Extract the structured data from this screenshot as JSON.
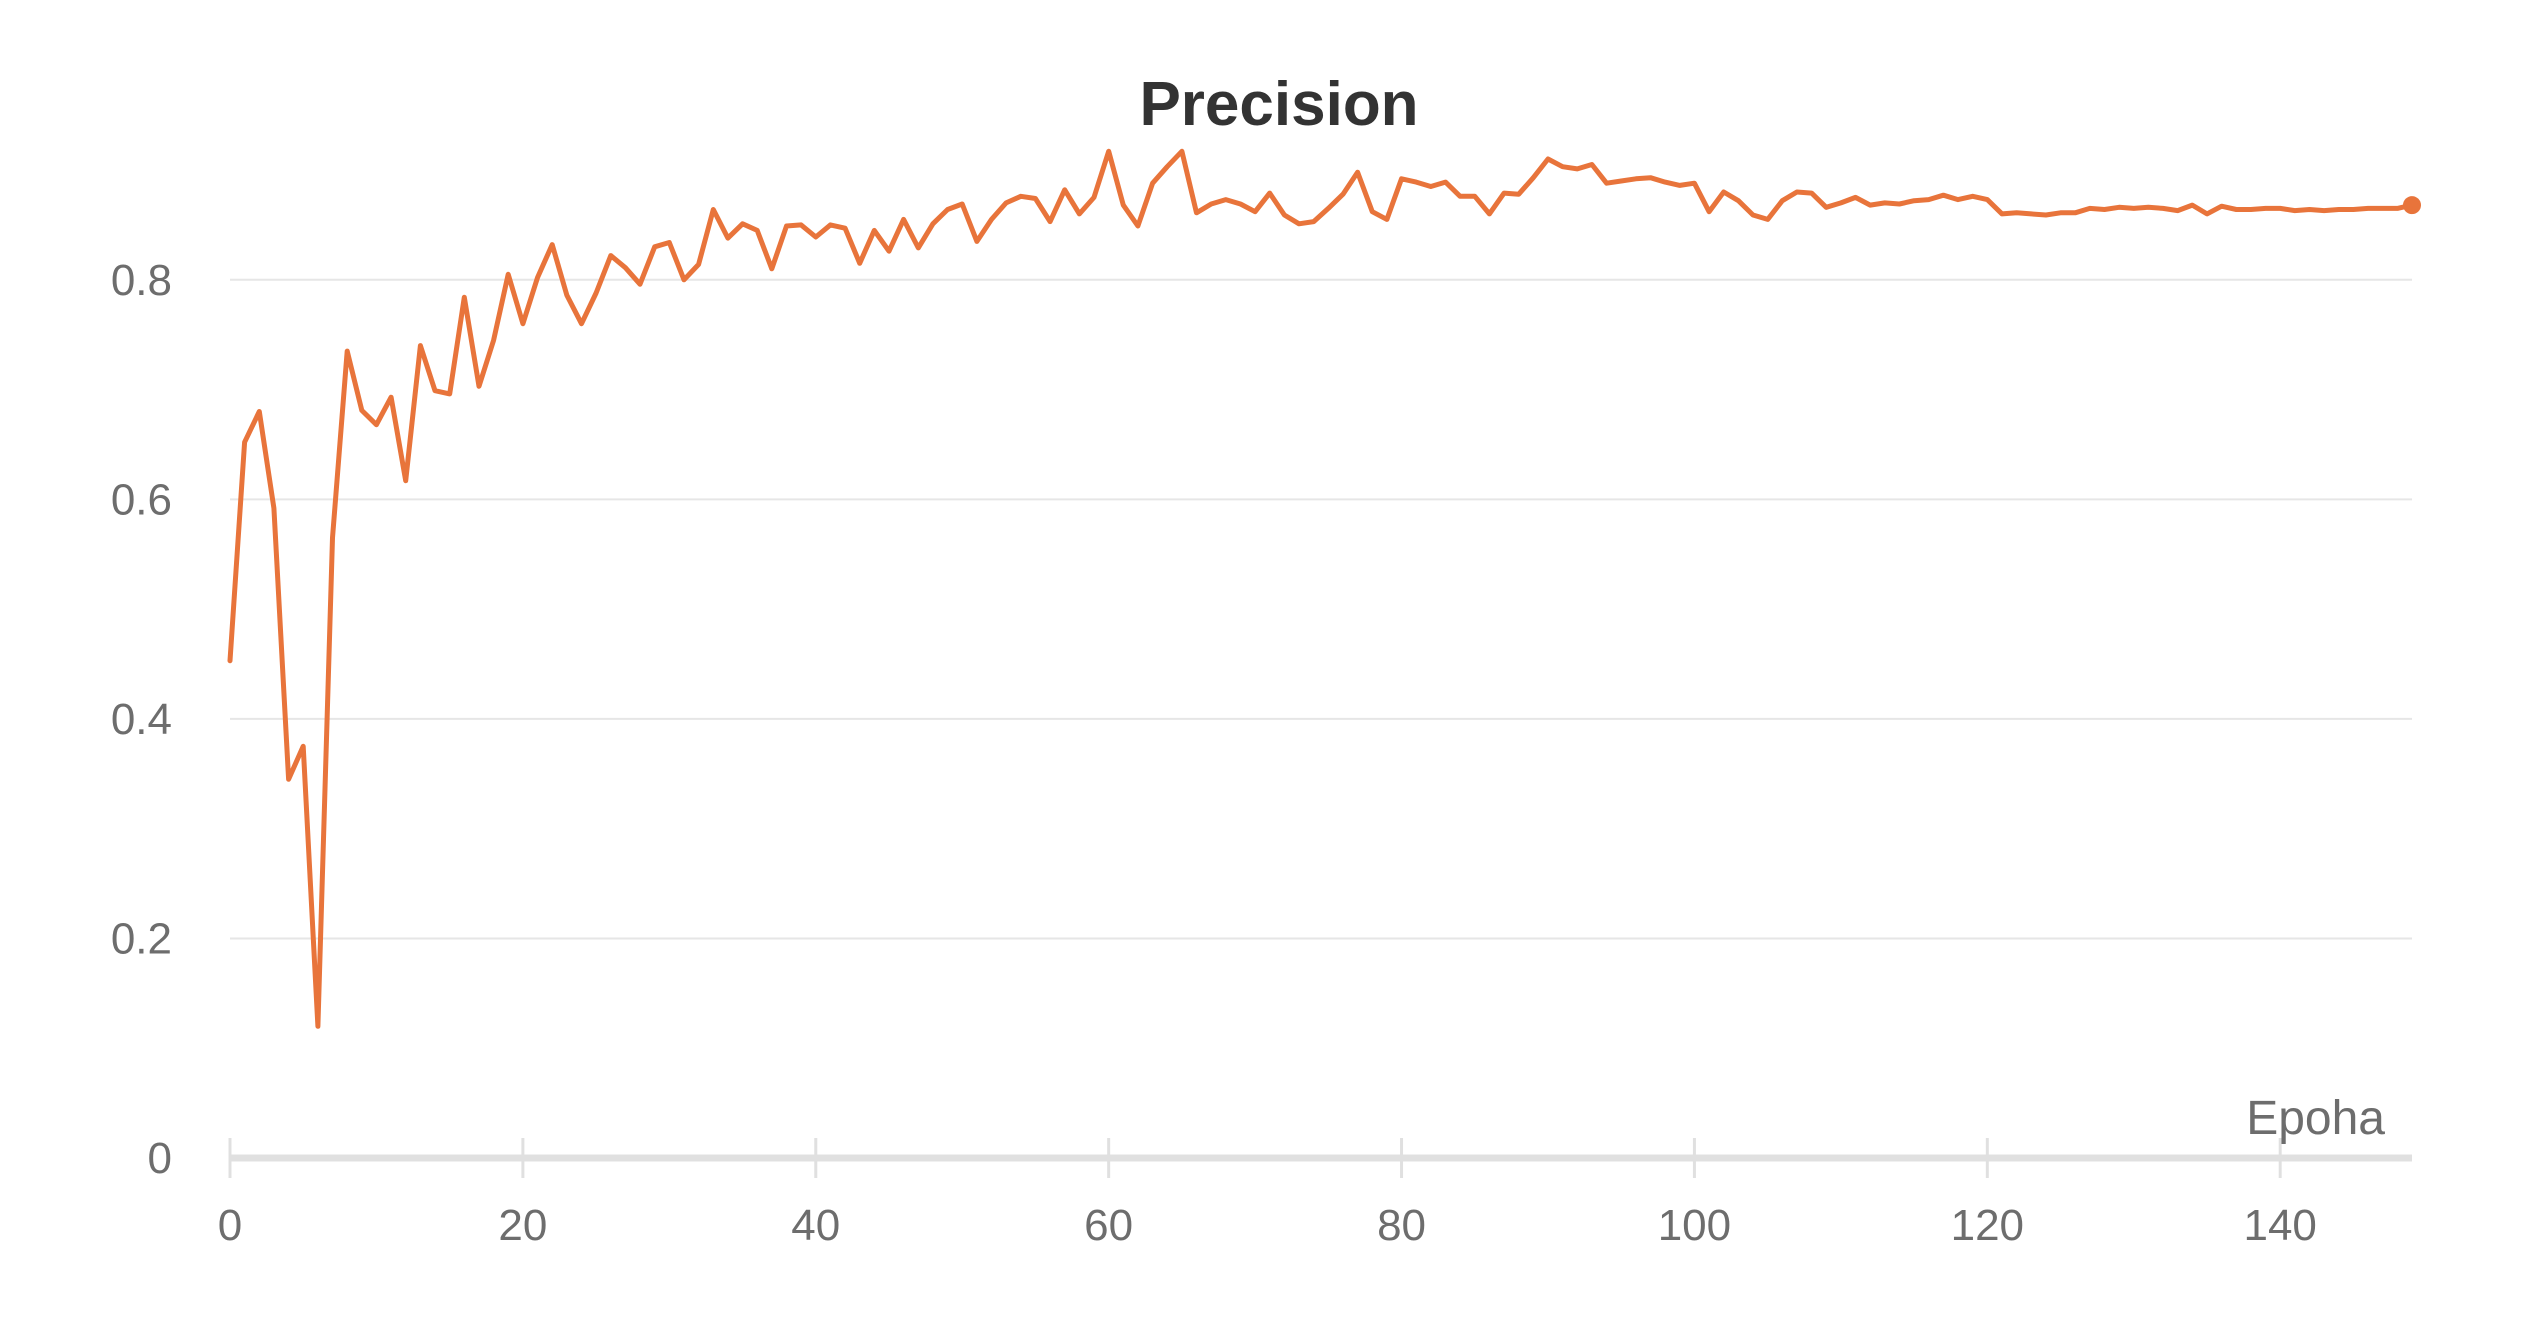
{
  "chart_data": {
    "type": "line",
    "title": "Precision",
    "xlabel": "Epoha",
    "ylabel": "",
    "xlim": [
      0,
      149
    ],
    "ylim": [
      0,
      0.9
    ],
    "grid": true,
    "xticks": [
      0,
      20,
      40,
      60,
      80,
      100,
      120,
      140
    ],
    "xtick_labels": [
      "0",
      "20",
      "40",
      "60",
      "80",
      "100",
      "120",
      "140"
    ],
    "yticks": [
      0,
      0.2,
      0.4,
      0.6,
      0.8
    ],
    "ytick_labels": [
      "0",
      "0.2",
      "0.4",
      "0.6",
      "0.8"
    ],
    "line_color": "#e8743b",
    "grid_color": "#e6e6e6",
    "axis_color": "#e0e0e0",
    "series": [
      {
        "end_marker": true,
        "x": [
          0,
          1,
          2,
          3,
          4,
          5,
          6,
          7,
          8,
          9,
          10,
          11,
          12,
          13,
          14,
          15,
          16,
          17,
          18,
          19,
          20,
          21,
          22,
          23,
          24,
          25,
          26,
          27,
          28,
          29,
          30,
          31,
          32,
          33,
          34,
          35,
          36,
          37,
          38,
          39,
          40,
          41,
          42,
          43,
          44,
          45,
          46,
          47,
          48,
          49,
          50,
          51,
          52,
          53,
          54,
          55,
          56,
          57,
          58,
          59,
          60,
          61,
          62,
          63,
          64,
          65,
          66,
          67,
          68,
          69,
          70,
          71,
          72,
          73,
          74,
          75,
          76,
          77,
          78,
          79,
          80,
          81,
          82,
          83,
          84,
          85,
          86,
          87,
          88,
          89,
          90,
          91,
          92,
          93,
          94,
          95,
          96,
          97,
          98,
          99,
          100,
          101,
          102,
          103,
          104,
          105,
          106,
          107,
          108,
          109,
          110,
          111,
          112,
          113,
          114,
          115,
          116,
          117,
          118,
          119,
          120,
          121,
          122,
          123,
          124,
          125,
          126,
          127,
          128,
          129,
          130,
          131,
          132,
          133,
          134,
          135,
          136,
          137,
          138,
          139,
          140,
          141,
          142,
          143,
          144,
          145,
          146,
          147,
          148,
          149
        ],
        "values": [
          0.453,
          0.652,
          0.68,
          0.592,
          0.345,
          0.375,
          0.12,
          0.565,
          0.735,
          0.681,
          0.668,
          0.693,
          0.617,
          0.74,
          0.699,
          0.696,
          0.784,
          0.703,
          0.745,
          0.805,
          0.76,
          0.802,
          0.832,
          0.786,
          0.76,
          0.788,
          0.822,
          0.811,
          0.796,
          0.83,
          0.834,
          0.8,
          0.814,
          0.864,
          0.838,
          0.851,
          0.845,
          0.81,
          0.849,
          0.85,
          0.839,
          0.85,
          0.847,
          0.815,
          0.845,
          0.826,
          0.855,
          0.829,
          0.851,
          0.864,
          0.869,
          0.835,
          0.855,
          0.87,
          0.876,
          0.874,
          0.853,
          0.882,
          0.86,
          0.875,
          0.917,
          0.868,
          0.849,
          0.888,
          0.903,
          0.917,
          0.861,
          0.869,
          0.873,
          0.869,
          0.862,
          0.879,
          0.859,
          0.851,
          0.853,
          0.865,
          0.878,
          0.898,
          0.862,
          0.855,
          0.892,
          0.889,
          0.885,
          0.889,
          0.876,
          0.876,
          0.86,
          0.879,
          0.878,
          0.893,
          0.91,
          0.903,
          0.901,
          0.905,
          0.888,
          0.89,
          0.892,
          0.893,
          0.889,
          0.886,
          0.888,
          0.862,
          0.88,
          0.872,
          0.859,
          0.855,
          0.872,
          0.88,
          0.879,
          0.866,
          0.87,
          0.875,
          0.868,
          0.87,
          0.869,
          0.872,
          0.873,
          0.877,
          0.873,
          0.876,
          0.873,
          0.86,
          0.861,
          0.86,
          0.859,
          0.861,
          0.861,
          0.865,
          0.864,
          0.866,
          0.865,
          0.866,
          0.865,
          0.863,
          0.868,
          0.86,
          0.867,
          0.864,
          0.864,
          0.865,
          0.865,
          0.863,
          0.864,
          0.863,
          0.864,
          0.864,
          0.865,
          0.865,
          0.865,
          0.868
        ]
      }
    ]
  }
}
